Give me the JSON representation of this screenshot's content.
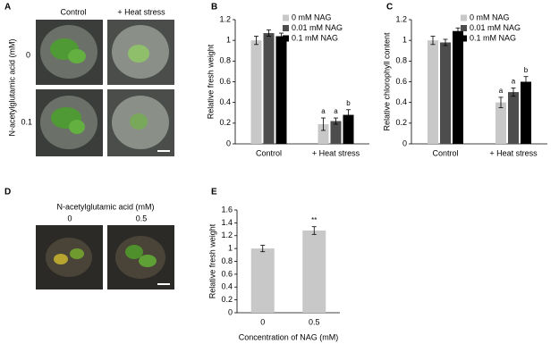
{
  "panels": {
    "a": {
      "letter": "A",
      "columns": [
        "Control",
        "+ Heat stress"
      ],
      "rows": [
        "0",
        "0.1"
      ],
      "row_title": "N-acetylglutamic acid (mM)"
    },
    "b": {
      "letter": "B"
    },
    "c": {
      "letter": "C"
    },
    "d": {
      "letter": "D",
      "title": "N-acetylglutamic acid (mM)",
      "columns": [
        "0",
        "0.5"
      ]
    },
    "e": {
      "letter": "E"
    }
  },
  "chart_data": [
    {
      "type": "bar",
      "ylabel": "Relative fresh weight",
      "categories": [
        "Control",
        "+ Heat stress"
      ],
      "series": [
        {
          "name": "0 mM NAG",
          "color": "#c8c8c8",
          "values": [
            1.0,
            0.19
          ],
          "errors": [
            0.04,
            0.06
          ],
          "sig_labels": [
            null,
            "a"
          ]
        },
        {
          "name": "0.01 mM NAG",
          "color": "#4d4d4d",
          "values": [
            1.07,
            0.22
          ],
          "errors": [
            0.03,
            0.03
          ],
          "sig_labels": [
            null,
            "a"
          ]
        },
        {
          "name": "0.1 mM NAG",
          "color": "#000000",
          "values": [
            1.04,
            0.28
          ],
          "errors": [
            0.03,
            0.05
          ],
          "sig_labels": [
            null,
            "b"
          ]
        }
      ],
      "ylim": [
        0,
        1.2
      ],
      "yticks": [
        0,
        0.2,
        0.4,
        0.6,
        0.8,
        1,
        1.2
      ],
      "legend": "upper right"
    },
    {
      "type": "bar",
      "ylabel": "Relative chlorophyll content",
      "categories": [
        "Control",
        "+ Heat stress"
      ],
      "series": [
        {
          "name": "0 mM NAG",
          "color": "#c8c8c8",
          "values": [
            1.0,
            0.4
          ],
          "errors": [
            0.04,
            0.05
          ],
          "sig_labels": [
            null,
            "a"
          ]
        },
        {
          "name": "0.01 mM NAG",
          "color": "#4d4d4d",
          "values": [
            0.98,
            0.5
          ],
          "errors": [
            0.03,
            0.04
          ],
          "sig_labels": [
            null,
            "a"
          ]
        },
        {
          "name": "0.1 mM NAG",
          "color": "#000000",
          "values": [
            1.09,
            0.6
          ],
          "errors": [
            0.03,
            0.05
          ],
          "sig_labels": [
            null,
            "b"
          ]
        }
      ],
      "ylim": [
        0,
        1.2
      ],
      "yticks": [
        0,
        0.2,
        0.4,
        0.6,
        0.8,
        1,
        1.2
      ],
      "legend": "upper right"
    },
    {
      "type": "bar",
      "ylabel": "Relative fresh weight",
      "xlabel": "Concentration of NAG (mM)",
      "categories": [
        "0",
        "0.5"
      ],
      "series": [
        {
          "color": "#c8c8c8",
          "values": [
            1.0,
            1.28
          ],
          "errors": [
            0.05,
            0.06
          ],
          "sig_labels": [
            null,
            "**"
          ]
        }
      ],
      "ylim": [
        0,
        1.6
      ],
      "yticks": [
        0,
        0.2,
        0.4,
        0.6,
        0.8,
        1,
        1.2,
        1.4,
        1.6
      ]
    }
  ]
}
